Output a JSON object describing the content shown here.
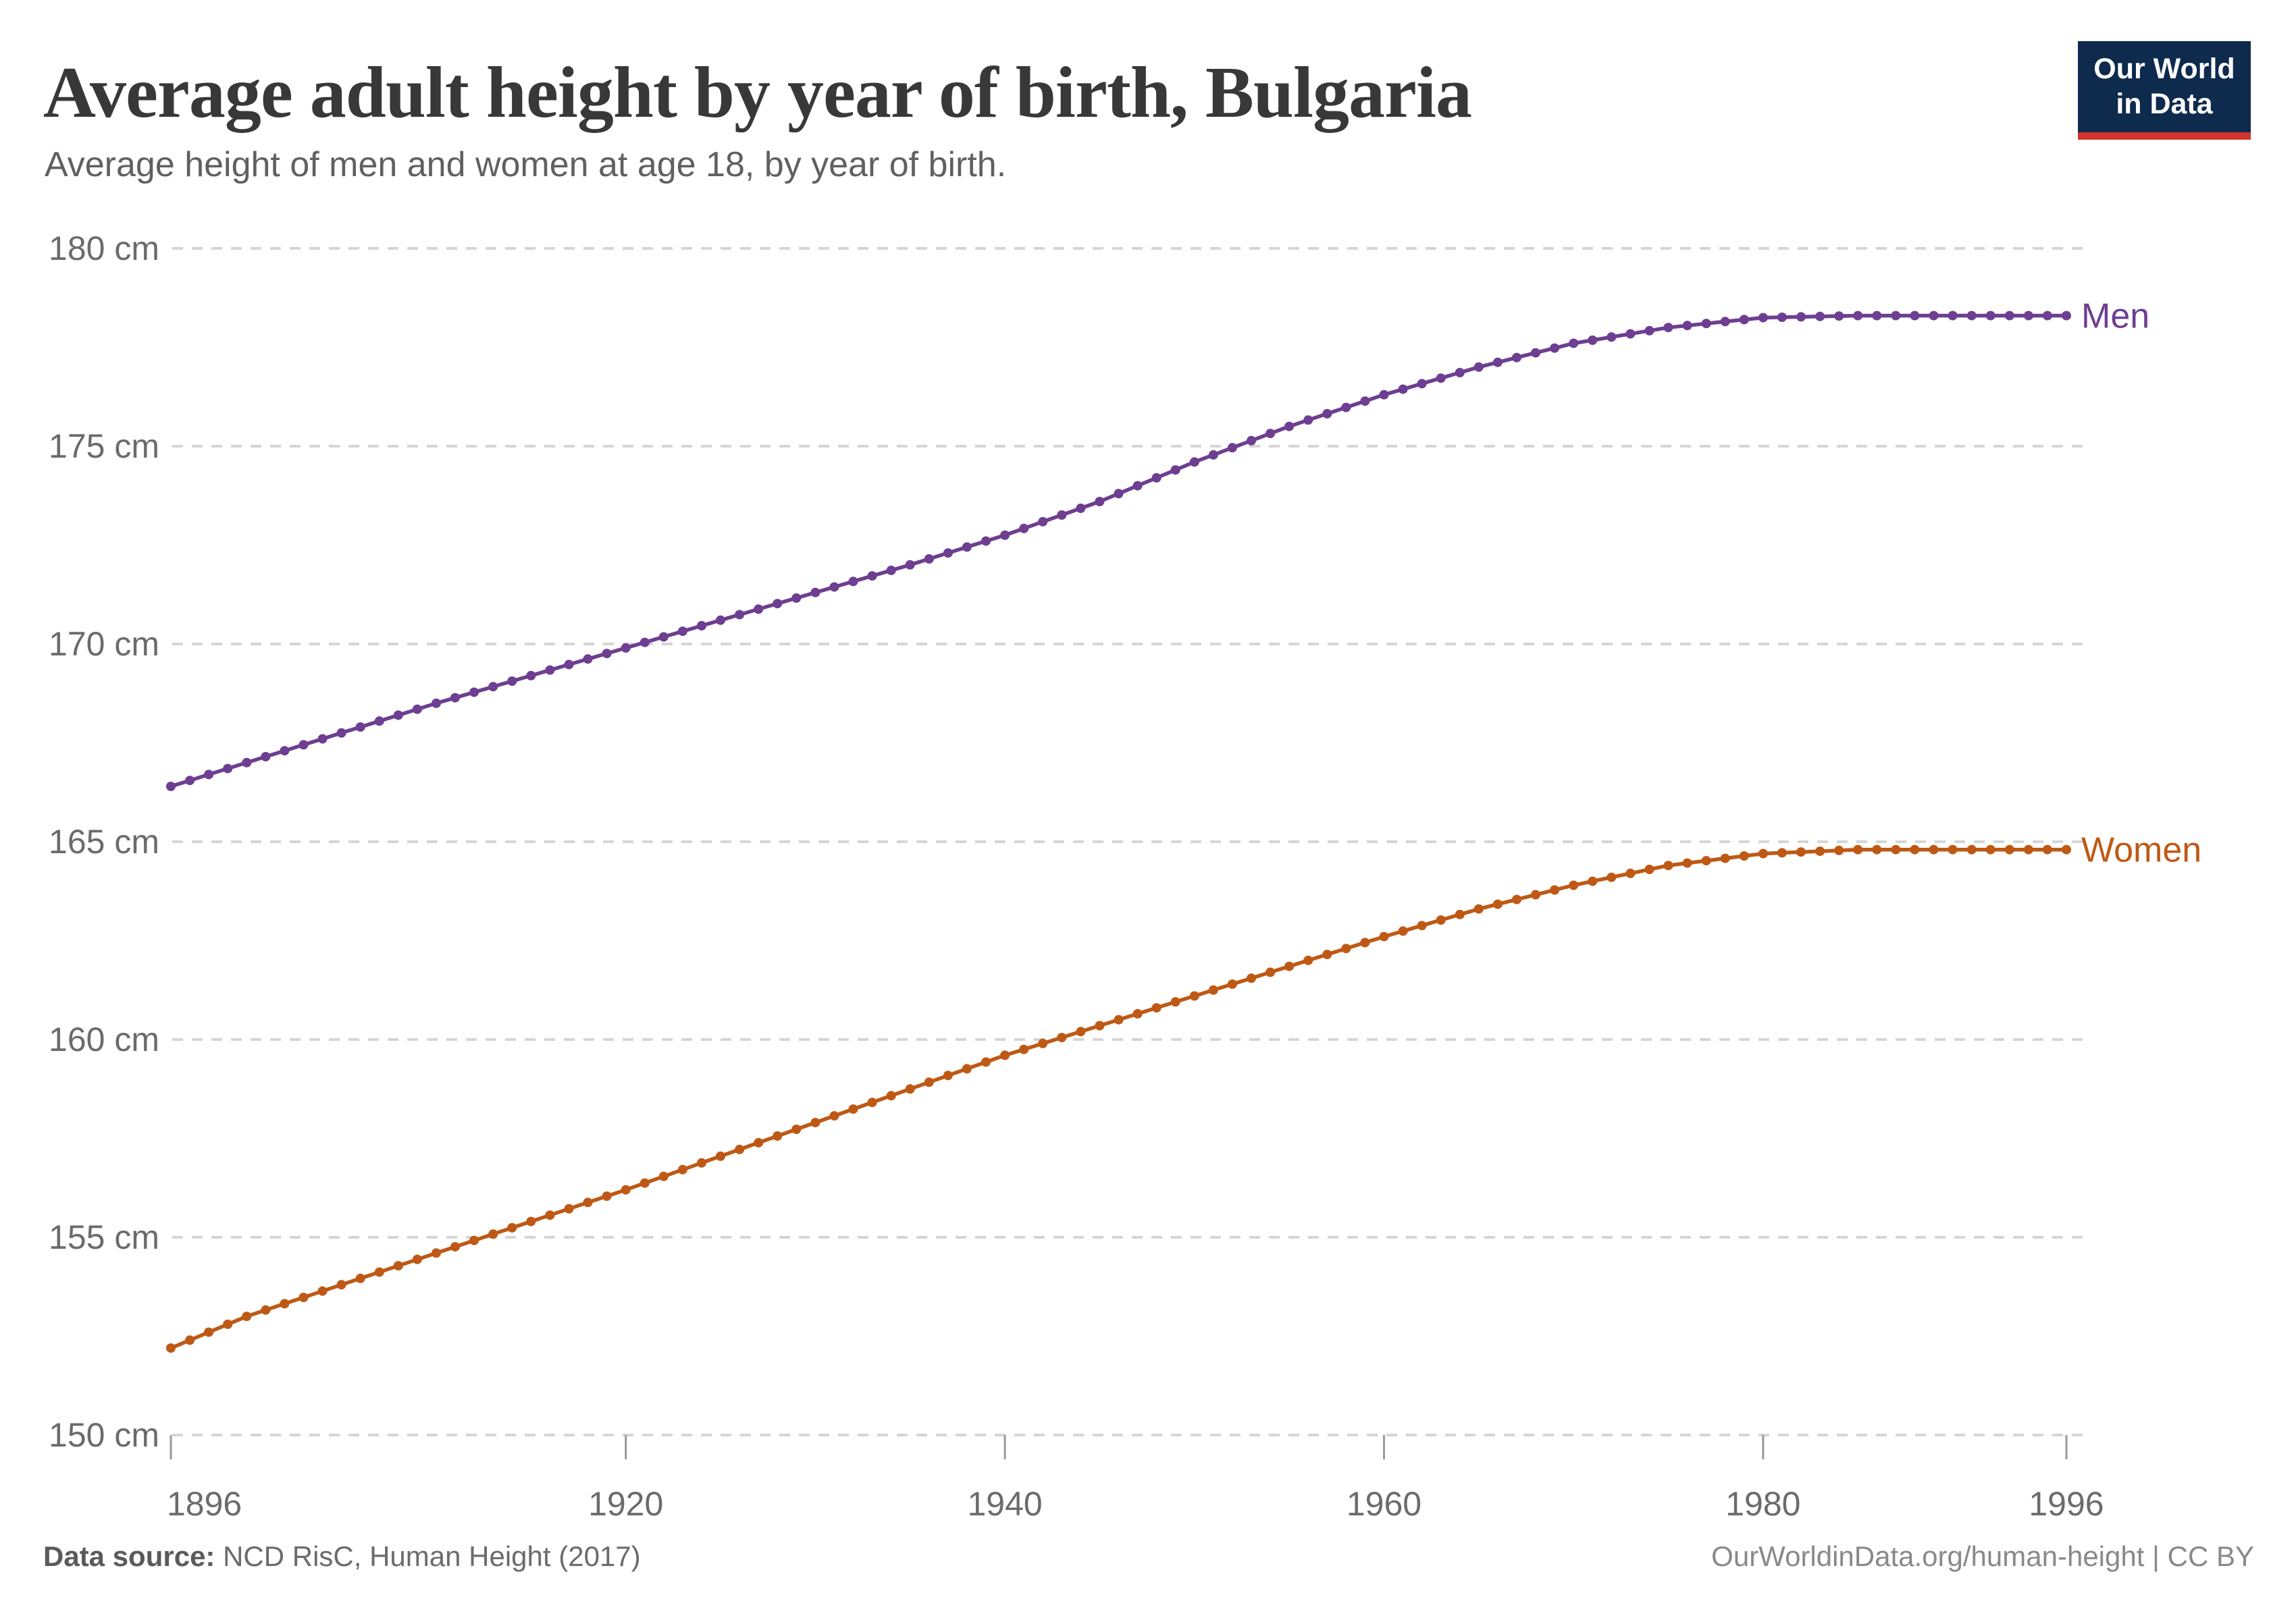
{
  "header": {
    "title": "Average adult height by year of birth, Bulgaria",
    "subtitle": "Average height of men and women at age 18, by year of birth.",
    "logo_line1": "Our World",
    "logo_line2": "in Data"
  },
  "footer": {
    "source_label": "Data source:",
    "source_value": "NCD RisC, Human Height (2017)",
    "credit": "OurWorldinData.org/human-height | CC BY"
  },
  "colors": {
    "men": "#6d3e91",
    "women": "#be5915",
    "grid": "#d5d5d5",
    "tick_mark": "#999999",
    "axis_text": "#6b6b6b",
    "logo_bg": "#0e2a4d",
    "logo_red": "#d0342c"
  },
  "chart_data": {
    "type": "line",
    "title": "Average adult height by year of birth, Bulgaria",
    "subtitle": "Average height of men and women at age 18, by year of birth.",
    "xlabel": "",
    "ylabel": "",
    "xlim": [
      1896,
      1996
    ],
    "ylim": [
      150,
      180
    ],
    "yticks": [
      180,
      175,
      170,
      165,
      160,
      155,
      150
    ],
    "ytick_suffix": " cm",
    "xticks": [
      1896,
      1920,
      1940,
      1960,
      1980,
      1996
    ],
    "grid": "horizontal-dashed",
    "legend_position": "end-of-line-labels",
    "x": [
      1896,
      1897,
      1898,
      1899,
      1900,
      1901,
      1902,
      1903,
      1904,
      1905,
      1906,
      1907,
      1908,
      1909,
      1910,
      1911,
      1912,
      1913,
      1914,
      1915,
      1916,
      1917,
      1918,
      1919,
      1920,
      1921,
      1922,
      1923,
      1924,
      1925,
      1926,
      1927,
      1928,
      1929,
      1930,
      1931,
      1932,
      1933,
      1934,
      1935,
      1936,
      1937,
      1938,
      1939,
      1940,
      1941,
      1942,
      1943,
      1944,
      1945,
      1946,
      1947,
      1948,
      1949,
      1950,
      1951,
      1952,
      1953,
      1954,
      1955,
      1956,
      1957,
      1958,
      1959,
      1960,
      1961,
      1962,
      1963,
      1964,
      1965,
      1966,
      1967,
      1968,
      1969,
      1970,
      1971,
      1972,
      1973,
      1974,
      1975,
      1976,
      1977,
      1978,
      1979,
      1980,
      1981,
      1982,
      1983,
      1984,
      1985,
      1986,
      1987,
      1988,
      1989,
      1990,
      1991,
      1992,
      1993,
      1994,
      1995,
      1996
    ],
    "series": [
      {
        "name": "Men",
        "color": "#6d3e91",
        "values": [
          166.4,
          166.55,
          166.7,
          166.85,
          167.0,
          167.15,
          167.3,
          167.45,
          167.6,
          167.75,
          167.9,
          168.05,
          168.2,
          168.35,
          168.5,
          168.64,
          168.78,
          168.92,
          169.06,
          169.2,
          169.34,
          169.48,
          169.62,
          169.76,
          169.9,
          170.04,
          170.18,
          170.32,
          170.46,
          170.6,
          170.74,
          170.88,
          171.02,
          171.16,
          171.3,
          171.44,
          171.58,
          171.72,
          171.86,
          172.0,
          172.15,
          172.3,
          172.45,
          172.6,
          172.75,
          172.92,
          173.09,
          173.26,
          173.43,
          173.6,
          173.8,
          174.0,
          174.2,
          174.4,
          174.6,
          174.78,
          174.96,
          175.14,
          175.32,
          175.5,
          175.66,
          175.82,
          175.98,
          176.14,
          176.3,
          176.44,
          176.58,
          176.72,
          176.86,
          177.0,
          177.12,
          177.24,
          177.36,
          177.48,
          177.6,
          177.68,
          177.76,
          177.84,
          177.92,
          178.0,
          178.05,
          178.1,
          178.15,
          178.2,
          178.25,
          178.26,
          178.27,
          178.28,
          178.29,
          178.3,
          178.3,
          178.3,
          178.3,
          178.3,
          178.3,
          178.3,
          178.3,
          178.3,
          178.3,
          178.3,
          178.3
        ]
      },
      {
        "name": "Women",
        "color": "#be5915",
        "values": [
          152.2,
          152.4,
          152.6,
          152.8,
          153.0,
          153.16,
          153.32,
          153.48,
          153.64,
          153.8,
          153.96,
          154.12,
          154.28,
          154.44,
          154.6,
          154.76,
          154.92,
          155.08,
          155.24,
          155.4,
          155.56,
          155.72,
          155.88,
          156.04,
          156.2,
          156.37,
          156.54,
          156.71,
          156.88,
          157.05,
          157.22,
          157.39,
          157.56,
          157.73,
          157.9,
          158.07,
          158.24,
          158.41,
          158.58,
          158.75,
          158.92,
          159.09,
          159.26,
          159.43,
          159.6,
          159.75,
          159.9,
          160.05,
          160.2,
          160.35,
          160.5,
          160.65,
          160.8,
          160.95,
          161.1,
          161.25,
          161.4,
          161.55,
          161.7,
          161.85,
          162.0,
          162.15,
          162.3,
          162.45,
          162.6,
          162.74,
          162.88,
          163.02,
          163.16,
          163.3,
          163.42,
          163.54,
          163.66,
          163.78,
          163.9,
          164.0,
          164.1,
          164.2,
          164.3,
          164.4,
          164.46,
          164.52,
          164.58,
          164.64,
          164.7,
          164.72,
          164.74,
          164.76,
          164.78,
          164.8,
          164.8,
          164.8,
          164.8,
          164.8,
          164.8,
          164.8,
          164.8,
          164.8,
          164.8,
          164.8,
          164.8
        ]
      }
    ]
  }
}
